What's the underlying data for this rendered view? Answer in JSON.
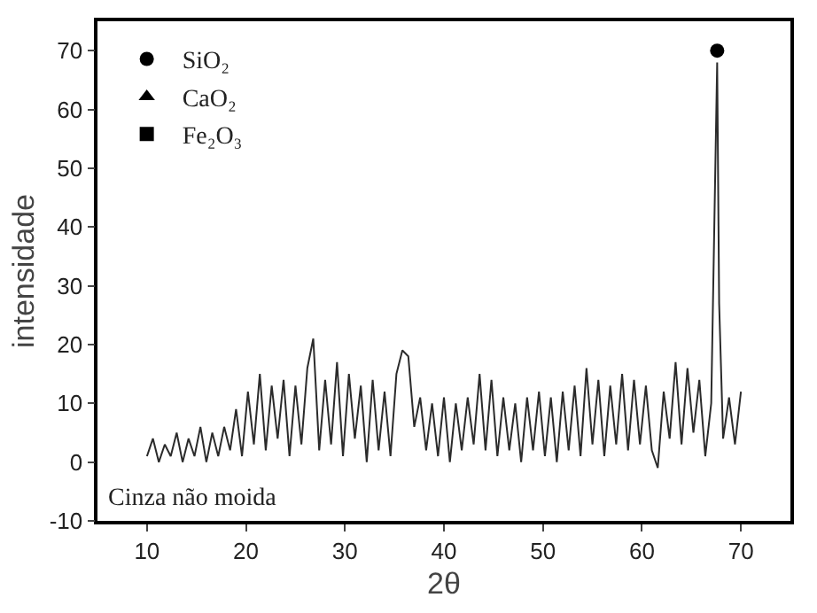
{
  "chart_data": {
    "type": "line",
    "xlabel": "2θ",
    "ylabel": "intensidade",
    "xlim": [
      5,
      75
    ],
    "ylim": [
      -10,
      75
    ],
    "xticks": [
      10,
      20,
      30,
      40,
      50,
      60,
      70
    ],
    "yticks": [
      -10,
      0,
      10,
      20,
      30,
      40,
      50,
      60,
      70
    ],
    "grid": false,
    "legend": "top left",
    "marker": "none",
    "line_style": "solid",
    "annotations": [
      "Cinza não moida"
    ],
    "series": [
      {
        "color": "#2b2b2b",
        "x": [
          10.0,
          10.6,
          11.2,
          11.8,
          12.4,
          13.0,
          13.6,
          14.2,
          14.8,
          15.4,
          16.0,
          16.6,
          17.2,
          17.8,
          18.4,
          19.0,
          19.6,
          20.2,
          20.8,
          21.4,
          22.0,
          22.6,
          23.2,
          23.8,
          24.4,
          25.0,
          25.6,
          26.2,
          26.8,
          27.4,
          28.0,
          28.6,
          29.2,
          29.8,
          30.4,
          31.0,
          31.6,
          32.2,
          32.8,
          33.4,
          34.0,
          34.6,
          35.2,
          35.8,
          36.4,
          37.0,
          37.6,
          38.2,
          38.8,
          39.4,
          40.0,
          40.6,
          41.2,
          41.8,
          42.4,
          43.0,
          43.6,
          44.2,
          44.8,
          45.4,
          46.0,
          46.6,
          47.2,
          47.8,
          48.4,
          49.0,
          49.6,
          50.2,
          50.8,
          51.4,
          52.0,
          52.6,
          53.2,
          53.8,
          54.4,
          55.0,
          55.6,
          56.2,
          56.8,
          57.4,
          58.0,
          58.6,
          59.2,
          59.8,
          60.4,
          61.0,
          61.6,
          62.2,
          62.8,
          63.4,
          64.0,
          64.6,
          65.2,
          65.8,
          66.4,
          67.0,
          67.6,
          67.8,
          68.2,
          68.8,
          69.4,
          70.0
        ],
        "values": [
          1,
          4,
          0,
          3,
          1,
          5,
          0,
          4,
          1,
          6,
          0,
          5,
          1,
          6,
          2,
          9,
          1,
          12,
          3,
          15,
          2,
          13,
          4,
          14,
          1,
          13,
          3,
          16,
          21,
          2,
          14,
          3,
          17,
          1,
          15,
          4,
          13,
          0,
          14,
          2,
          12,
          1,
          15,
          19,
          18,
          6,
          11,
          2,
          10,
          1,
          11,
          0,
          10,
          2,
          11,
          3,
          15,
          2,
          14,
          1,
          11,
          2,
          10,
          0,
          11,
          2,
          12,
          1,
          11,
          0,
          12,
          2,
          13,
          1,
          16,
          3,
          14,
          1,
          13,
          3,
          15,
          2,
          14,
          3,
          13,
          2,
          -1,
          12,
          4,
          17,
          3,
          16,
          5,
          14,
          1,
          10,
          68,
          27,
          4,
          11,
          3,
          12
        ]
      },
      {
        "name": "SiO₂",
        "type": "scatter",
        "marker": "circle",
        "color": "#000000",
        "x": [
          67.6
        ],
        "values": [
          70
        ]
      },
      {
        "name": "CaO₂",
        "type": "scatter",
        "marker": "triangle",
        "color": "#000000",
        "x": [
          null
        ],
        "values": [
          null
        ]
      },
      {
        "name": "Fe₂O₃",
        "type": "scatter",
        "marker": "square",
        "color": "#000000",
        "x": [
          null
        ],
        "values": [
          null
        ]
      }
    ]
  }
}
